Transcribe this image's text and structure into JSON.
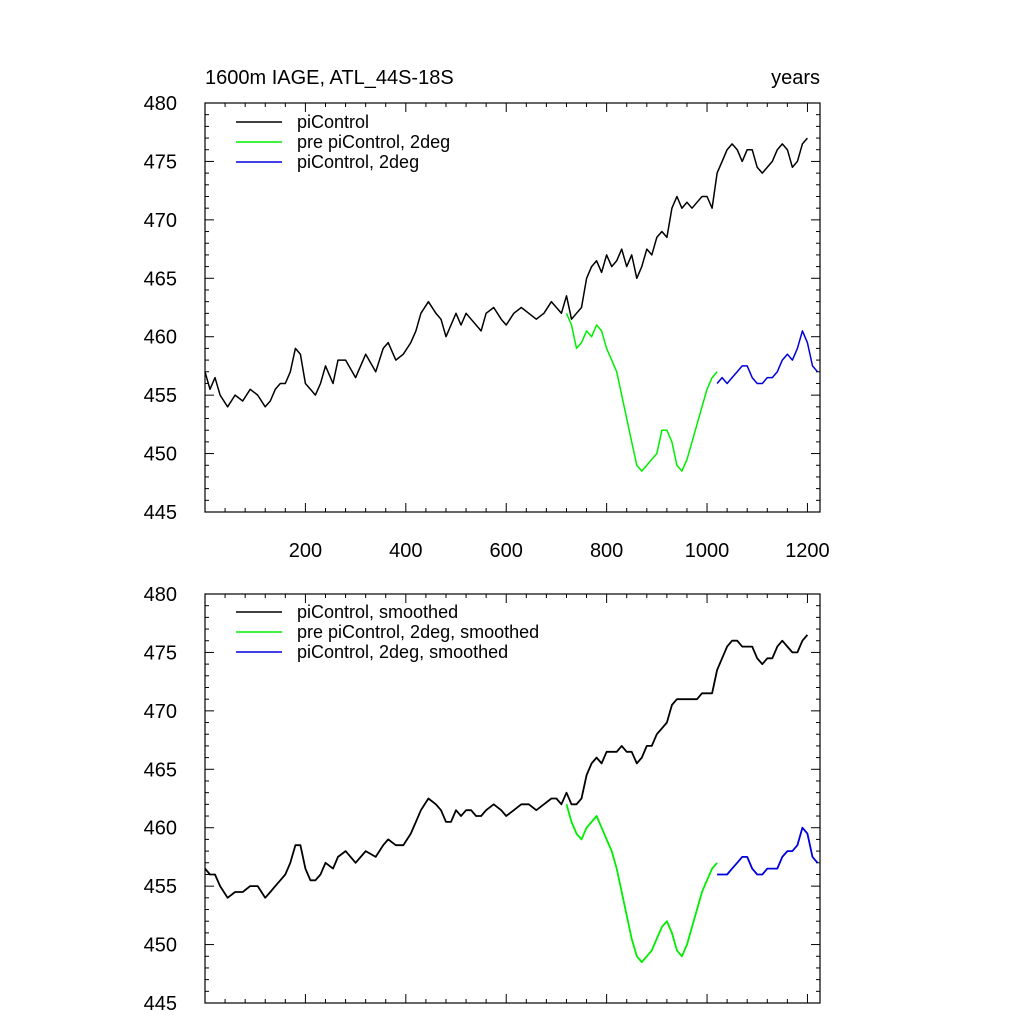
{
  "chart_data": [
    {
      "type": "line",
      "title_left": "1600m IAGE, ATL_44S-18S",
      "title_right": "years",
      "xlim": [
        0,
        1225
      ],
      "ylim": [
        445,
        480
      ],
      "x_ticks": [
        200,
        400,
        600,
        800,
        1000,
        1200
      ],
      "x_tick_labels": [
        "200",
        "400",
        "600",
        "800",
        "1000",
        "1200"
      ],
      "y_ticks": [
        445,
        450,
        455,
        460,
        465,
        470,
        475,
        480
      ],
      "y_tick_labels": [
        "445",
        "450",
        "455",
        "460",
        "465",
        "470",
        "475",
        "480"
      ],
      "legend": [
        {
          "label": "piControl",
          "color": "#000000"
        },
        {
          "label": "pre piControl, 2deg",
          "color": "#00ee00"
        },
        {
          "label": "piControl, 2deg",
          "color": "#0000dd"
        }
      ],
      "series": [
        {
          "name": "piControl",
          "color": "#000000",
          "x": [
            0,
            10,
            20,
            30,
            45,
            60,
            75,
            90,
            105,
            120,
            130,
            140,
            150,
            160,
            170,
            180,
            190,
            200,
            210,
            220,
            230,
            240,
            255,
            265,
            280,
            300,
            320,
            340,
            355,
            365,
            380,
            395,
            410,
            420,
            430,
            445,
            460,
            470,
            480,
            490,
            500,
            510,
            520,
            530,
            540,
            550,
            560,
            575,
            590,
            600,
            615,
            630,
            645,
            660,
            675,
            690,
            700,
            710,
            720,
            730,
            740,
            750,
            760,
            770,
            780,
            790,
            800,
            810,
            820,
            830,
            840,
            850,
            860,
            870,
            880,
            890,
            900,
            910,
            920,
            930,
            940,
            950,
            960,
            970,
            980,
            990,
            1000,
            1010,
            1020,
            1030,
            1040,
            1050,
            1060,
            1070,
            1080,
            1090,
            1100,
            1110,
            1120,
            1130,
            1140,
            1150,
            1160,
            1170,
            1180,
            1190,
            1200
          ],
          "y": [
            457,
            455.5,
            456.5,
            455,
            454,
            455,
            454.5,
            455.5,
            455,
            454,
            454.5,
            455.5,
            456,
            456,
            457,
            459,
            458.5,
            456,
            455.5,
            455,
            456,
            457.5,
            456,
            458,
            458,
            456.5,
            458.5,
            457,
            459,
            459.5,
            458,
            458.5,
            459.5,
            460.5,
            462,
            463,
            462,
            461.5,
            460,
            461,
            462,
            461,
            462,
            461.5,
            461,
            460.5,
            462,
            462.5,
            461.5,
            461,
            462,
            462.5,
            462,
            461.5,
            462,
            463,
            462.5,
            462,
            463.5,
            461.5,
            462,
            462.5,
            465,
            466,
            466.5,
            465.5,
            467,
            466,
            466.5,
            467.5,
            466,
            467,
            465,
            466,
            467.5,
            467,
            468.5,
            469,
            468.5,
            471,
            472,
            471,
            471.5,
            471,
            471.5,
            472,
            472,
            471,
            474,
            475,
            476,
            476.5,
            476,
            475,
            476,
            476,
            474.5,
            474,
            474.5,
            475,
            476,
            476.5,
            476,
            474.5,
            475,
            476.5,
            477
          ]
        },
        {
          "name": "pre piControl, 2deg",
          "color": "#00ee00",
          "x": [
            720,
            730,
            740,
            750,
            760,
            770,
            780,
            790,
            800,
            810,
            820,
            830,
            840,
            850,
            860,
            870,
            880,
            890,
            900,
            910,
            920,
            930,
            940,
            950,
            960,
            970,
            980,
            990,
            1000,
            1010,
            1020
          ],
          "y": [
            462,
            461,
            459,
            459.5,
            460.5,
            460,
            461,
            460.5,
            459,
            458,
            457,
            455,
            453,
            451,
            449,
            448.5,
            449,
            449.5,
            450,
            452,
            452,
            451,
            449,
            448.5,
            449.5,
            451,
            452.5,
            454,
            455.5,
            456.5,
            457
          ]
        },
        {
          "name": "piControl, 2deg",
          "color": "#0000dd",
          "x": [
            1020,
            1030,
            1040,
            1050,
            1060,
            1070,
            1080,
            1090,
            1100,
            1110,
            1120,
            1130,
            1140,
            1150,
            1160,
            1170,
            1180,
            1190,
            1200,
            1210,
            1220
          ],
          "y": [
            456,
            456.5,
            456,
            456.5,
            457,
            457.5,
            457.5,
            456.5,
            456,
            456,
            456.5,
            456.5,
            457,
            458,
            458.5,
            458,
            459,
            460.5,
            459.5,
            457.5,
            457
          ]
        }
      ]
    },
    {
      "type": "line",
      "xlim": [
        0,
        1225
      ],
      "ylim": [
        445,
        480
      ],
      "x_ticks": [
        200,
        400,
        600,
        800,
        1000,
        1200
      ],
      "y_ticks": [
        445,
        450,
        455,
        460,
        465,
        470,
        475,
        480
      ],
      "y_tick_labels": [
        "445",
        "450",
        "455",
        "460",
        "465",
        "470",
        "475",
        "480"
      ],
      "legend": [
        {
          "label": "piControl, smoothed",
          "color": "#000000"
        },
        {
          "label": "pre piControl, 2deg, smoothed",
          "color": "#00ee00"
        },
        {
          "label": "piControl, 2deg, smoothed",
          "color": "#0000dd"
        }
      ],
      "series": [
        {
          "name": "piControl, smoothed",
          "color": "#000000",
          "x": [
            0,
            10,
            20,
            30,
            45,
            60,
            75,
            90,
            105,
            120,
            130,
            140,
            150,
            160,
            170,
            180,
            190,
            200,
            210,
            220,
            230,
            240,
            255,
            265,
            280,
            300,
            320,
            340,
            355,
            365,
            380,
            395,
            410,
            420,
            430,
            445,
            460,
            470,
            480,
            490,
            500,
            510,
            520,
            530,
            540,
            550,
            560,
            575,
            590,
            600,
            615,
            630,
            645,
            660,
            675,
            690,
            700,
            710,
            720,
            730,
            740,
            750,
            760,
            770,
            780,
            790,
            800,
            810,
            820,
            830,
            840,
            850,
            860,
            870,
            880,
            890,
            900,
            910,
            920,
            930,
            940,
            950,
            960,
            970,
            980,
            990,
            1000,
            1010,
            1020,
            1030,
            1040,
            1050,
            1060,
            1070,
            1080,
            1090,
            1100,
            1110,
            1120,
            1130,
            1140,
            1150,
            1160,
            1170,
            1180,
            1190,
            1200
          ],
          "y": [
            456.5,
            456,
            456,
            455,
            454,
            454.5,
            454.5,
            455,
            455,
            454,
            454.5,
            455,
            455.5,
            456,
            457,
            458.5,
            458.5,
            456.5,
            455.5,
            455.5,
            456,
            457,
            456.5,
            457.5,
            458,
            457,
            458,
            457.5,
            458.5,
            459,
            458.5,
            458.5,
            459.5,
            460.5,
            461.5,
            462.5,
            462,
            461.5,
            460.5,
            460.5,
            461.5,
            461,
            461.5,
            461.5,
            461,
            461,
            461.5,
            462,
            461.5,
            461,
            461.5,
            462,
            462,
            461.5,
            462,
            462.5,
            462.5,
            462,
            463,
            462,
            462,
            462.5,
            464.5,
            465.5,
            466,
            465.5,
            466.5,
            466.5,
            466.5,
            467,
            466.5,
            466.5,
            465.5,
            466,
            467,
            467,
            468,
            468.5,
            469,
            470.5,
            471,
            471,
            471,
            471,
            471,
            471.5,
            471.5,
            471.5,
            473.5,
            474.5,
            475.5,
            476,
            476,
            475.5,
            475.5,
            475.5,
            474.5,
            474,
            474.5,
            474.5,
            475.5,
            476,
            475.5,
            475,
            475,
            476,
            476.5
          ]
        },
        {
          "name": "pre piControl, 2deg, smoothed",
          "color": "#00ee00",
          "x": [
            720,
            730,
            740,
            750,
            760,
            770,
            780,
            790,
            800,
            810,
            820,
            830,
            840,
            850,
            860,
            870,
            880,
            890,
            900,
            910,
            920,
            930,
            940,
            950,
            960,
            970,
            980,
            990,
            1000,
            1010,
            1020
          ],
          "y": [
            462,
            460.5,
            459.5,
            459,
            460,
            460.5,
            461,
            460,
            459,
            458,
            456.5,
            454.5,
            452.5,
            450.5,
            449,
            448.5,
            449,
            449.5,
            450.5,
            451.5,
            452,
            451,
            449.5,
            449,
            450,
            451.5,
            453,
            454.5,
            455.5,
            456.5,
            457
          ]
        },
        {
          "name": "piControl, 2deg, smoothed",
          "color": "#0000dd",
          "x": [
            1020,
            1030,
            1040,
            1050,
            1060,
            1070,
            1080,
            1090,
            1100,
            1110,
            1120,
            1130,
            1140,
            1150,
            1160,
            1170,
            1180,
            1190,
            1200,
            1210,
            1220
          ],
          "y": [
            456,
            456,
            456,
            456.5,
            457,
            457.5,
            457.5,
            456.5,
            456,
            456,
            456.5,
            456.5,
            456.5,
            457.5,
            458,
            458,
            458.5,
            460,
            459.5,
            457.5,
            457
          ]
        }
      ]
    }
  ]
}
